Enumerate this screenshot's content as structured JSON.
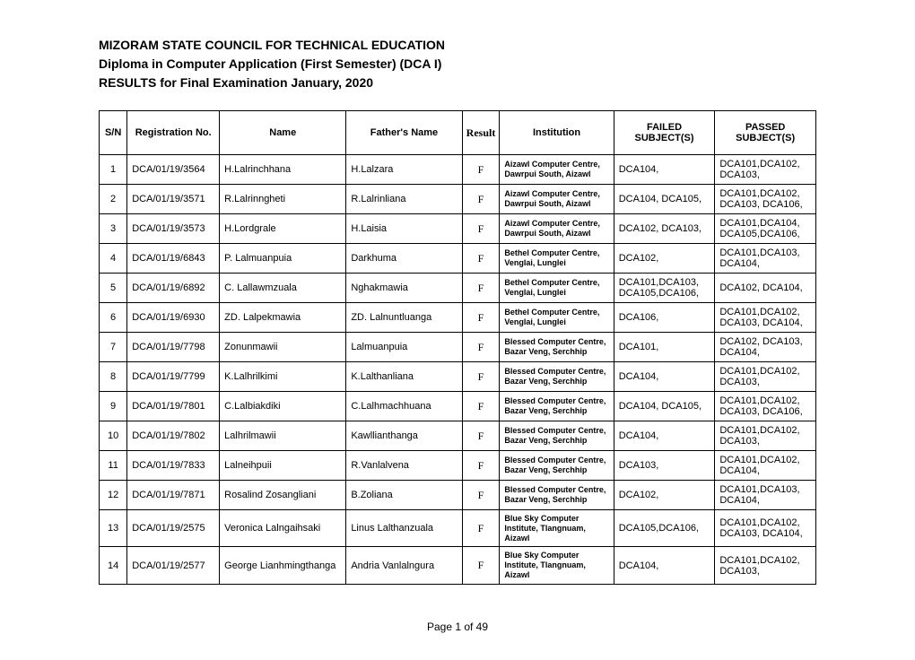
{
  "header": {
    "line1": "MIZORAM STATE COUNCIL  FOR TECHNICAL EDUCATION",
    "line2": "Diploma in Computer Application (First Semester) (DCA I)",
    "line3": "RESULTS for Final Examination January, 2020"
  },
  "columns": {
    "sn": "S/N",
    "reg": "Registration No.",
    "name": "Name",
    "father": "Father's Name",
    "result": "Result",
    "inst": "Institution",
    "failed": "FAILED SUBJECT(S)",
    "passed": "PASSED SUBJECT(S)"
  },
  "rows": [
    {
      "sn": "1",
      "reg": "DCA/01/19/3564",
      "name": "H.Lalrinchhana",
      "father": "H.Lalzara",
      "result": "F",
      "inst": "Aizawl Computer Centre, Dawrpui South, Aizawl",
      "failed": "DCA104,",
      "passed": "DCA101,DCA102, DCA103,"
    },
    {
      "sn": "2",
      "reg": "DCA/01/19/3571",
      "name": "R.Lalrinngheti",
      "father": "R.Lalrinliana",
      "result": "F",
      "inst": "Aizawl Computer Centre, Dawrpui South, Aizawl",
      "failed": "DCA104, DCA105,",
      "passed": "DCA101,DCA102, DCA103, DCA106,"
    },
    {
      "sn": "3",
      "reg": "DCA/01/19/3573",
      "name": "H.Lordgrale",
      "father": "H.Laisia",
      "result": "F",
      "inst": "Aizawl Computer Centre, Dawrpui South, Aizawl",
      "failed": "DCA102, DCA103,",
      "passed": "DCA101,DCA104, DCA105,DCA106,"
    },
    {
      "sn": "4",
      "reg": "DCA/01/19/6843",
      "name": "P. Lalmuanpuia",
      "father": "Darkhuma",
      "result": "F",
      "inst": "Bethel Computer Centre, Venglai, Lunglei",
      "failed": "DCA102,",
      "passed": "DCA101,DCA103, DCA104,"
    },
    {
      "sn": "5",
      "reg": "DCA/01/19/6892",
      "name": "C. Lallawmzuala",
      "father": "Nghakmawia",
      "result": "F",
      "inst": "Bethel Computer Centre, Venglai, Lunglei",
      "failed": "DCA101,DCA103, DCA105,DCA106,",
      "passed": "DCA102, DCA104,"
    },
    {
      "sn": "6",
      "reg": "DCA/01/19/6930",
      "name": "ZD. Lalpekmawia",
      "father": "ZD. Lalnuntluanga",
      "result": "F",
      "inst": "Bethel Computer Centre, Venglai, Lunglei",
      "failed": "DCA106,",
      "passed": "DCA101,DCA102, DCA103, DCA104,"
    },
    {
      "sn": "7",
      "reg": "DCA/01/19/7798",
      "name": "Zonunmawii",
      "father": "Lalmuanpuia",
      "result": "F",
      "inst": "Blessed Computer Centre, Bazar Veng, Serchhip",
      "failed": "DCA101,",
      "passed": "DCA102, DCA103, DCA104,"
    },
    {
      "sn": "8",
      "reg": "DCA/01/19/7799",
      "name": "K.Lalhrilkimi",
      "father": "K.Lalthanliana",
      "result": "F",
      "inst": "Blessed Computer Centre, Bazar Veng, Serchhip",
      "failed": "DCA104,",
      "passed": "DCA101,DCA102, DCA103,"
    },
    {
      "sn": "9",
      "reg": "DCA/01/19/7801",
      "name": "C.Lalbiakdiki",
      "father": "C.Lalhmachhuana",
      "result": "F",
      "inst": "Blessed Computer Centre, Bazar Veng, Serchhip",
      "failed": "DCA104, DCA105,",
      "passed": "DCA101,DCA102, DCA103, DCA106,"
    },
    {
      "sn": "10",
      "reg": "DCA/01/19/7802",
      "name": "Lalhrilmawii",
      "father": "Kawllianthanga",
      "result": "F",
      "inst": "Blessed Computer Centre, Bazar Veng, Serchhip",
      "failed": "DCA104,",
      "passed": "DCA101,DCA102, DCA103,"
    },
    {
      "sn": "11",
      "reg": "DCA/01/19/7833",
      "name": "Lalneihpuii",
      "father": "R.Vanlalvena",
      "result": "F",
      "inst": "Blessed Computer Centre, Bazar Veng, Serchhip",
      "failed": "DCA103,",
      "passed": "DCA101,DCA102, DCA104,"
    },
    {
      "sn": "12",
      "reg": "DCA/01/19/7871",
      "name": "Rosalind Zosangliani",
      "father": "B.Zoliana",
      "result": "F",
      "inst": "Blessed Computer Centre, Bazar Veng, Serchhip",
      "failed": "DCA102,",
      "passed": "DCA101,DCA103, DCA104,"
    },
    {
      "sn": "13",
      "reg": "DCA/01/19/2575",
      "name": "Veronica Lalngaihsaki",
      "father": "Linus Lalthanzuala",
      "result": "F",
      "inst": "Blue Sky Computer Institute, Tlangnuam, Aizawl",
      "failed": "DCA105,DCA106,",
      "passed": "DCA101,DCA102, DCA103, DCA104,"
    },
    {
      "sn": "14",
      "reg": "DCA/01/19/2577",
      "name": "George Lianhmingthanga",
      "father": "Andria Vanlalngura",
      "result": "F",
      "inst": "Blue Sky Computer Institute, Tlangnuam, Aizawl",
      "failed": "DCA104,",
      "passed": "DCA101,DCA102, DCA103,"
    }
  ],
  "footer": "Page 1 of 49"
}
